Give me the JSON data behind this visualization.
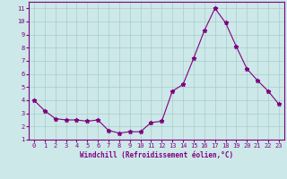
{
  "x": [
    0,
    1,
    2,
    3,
    4,
    5,
    6,
    7,
    8,
    9,
    10,
    11,
    12,
    13,
    14,
    15,
    16,
    17,
    18,
    19,
    20,
    21,
    22,
    23
  ],
  "y": [
    4.0,
    3.2,
    2.6,
    2.5,
    2.5,
    2.4,
    2.5,
    1.7,
    1.5,
    1.6,
    1.6,
    2.3,
    2.4,
    4.7,
    5.2,
    7.2,
    9.3,
    11.0,
    9.9,
    8.1,
    6.4,
    5.5,
    4.7,
    3.7
  ],
  "line_color": "#800080",
  "marker": "*",
  "marker_size": 3.5,
  "background_color": "#cce8e8",
  "grid_color": "#aacccc",
  "xlabel": "Windchill (Refroidissement éolien,°C)",
  "xlim": [
    -0.5,
    23.5
  ],
  "ylim": [
    1,
    11.5
  ],
  "yticks": [
    1,
    2,
    3,
    4,
    5,
    6,
    7,
    8,
    9,
    10,
    11
  ],
  "xticks": [
    0,
    1,
    2,
    3,
    4,
    5,
    6,
    7,
    8,
    9,
    10,
    11,
    12,
    13,
    14,
    15,
    16,
    17,
    18,
    19,
    20,
    21,
    22,
    23
  ],
  "tick_fontsize": 5.0,
  "xlabel_fontsize": 5.5
}
